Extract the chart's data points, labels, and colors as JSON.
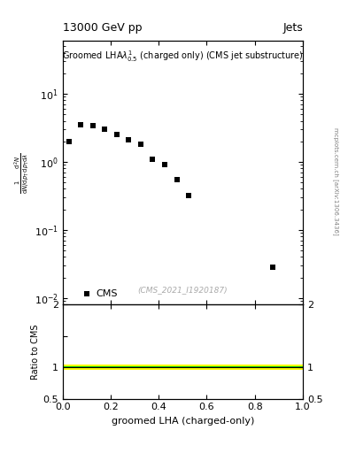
{
  "scatter_x": [
    0.025,
    0.075,
    0.125,
    0.175,
    0.225,
    0.275,
    0.325,
    0.375,
    0.425,
    0.475,
    0.525,
    0.875
  ],
  "scatter_y": [
    2.0,
    3.5,
    3.4,
    3.0,
    2.5,
    2.1,
    1.8,
    1.1,
    0.9,
    0.55,
    0.32,
    0.028
  ],
  "title_text": "Groomed LHA$\\lambda^{1}_{0.5}$ (charged only) (CMS jet substructure)",
  "header_left": "13000 GeV pp",
  "header_right": "Jets",
  "watermark": "(CMS_2021_I1920187)",
  "ylabel_ratio": "Ratio to CMS",
  "xlabel": "groomed LHA (charged-only)",
  "ylim_main_log": [
    0.008,
    60
  ],
  "ylim_ratio": [
    0.5,
    2.0
  ],
  "xlim": [
    0.0,
    1.0
  ],
  "ratio_band_yellow_err": 0.04,
  "ratio_band_green_err": 0.012,
  "ratio_line_y": 1.0,
  "marker_color": "black",
  "marker_style": "s",
  "marker_size": 5,
  "green_color": "#00cc00",
  "yellow_color": "#ffff00",
  "right_label": "mcplots.cern.ch [arXiv:1306.3436]",
  "cms_legend_label": "CMS"
}
